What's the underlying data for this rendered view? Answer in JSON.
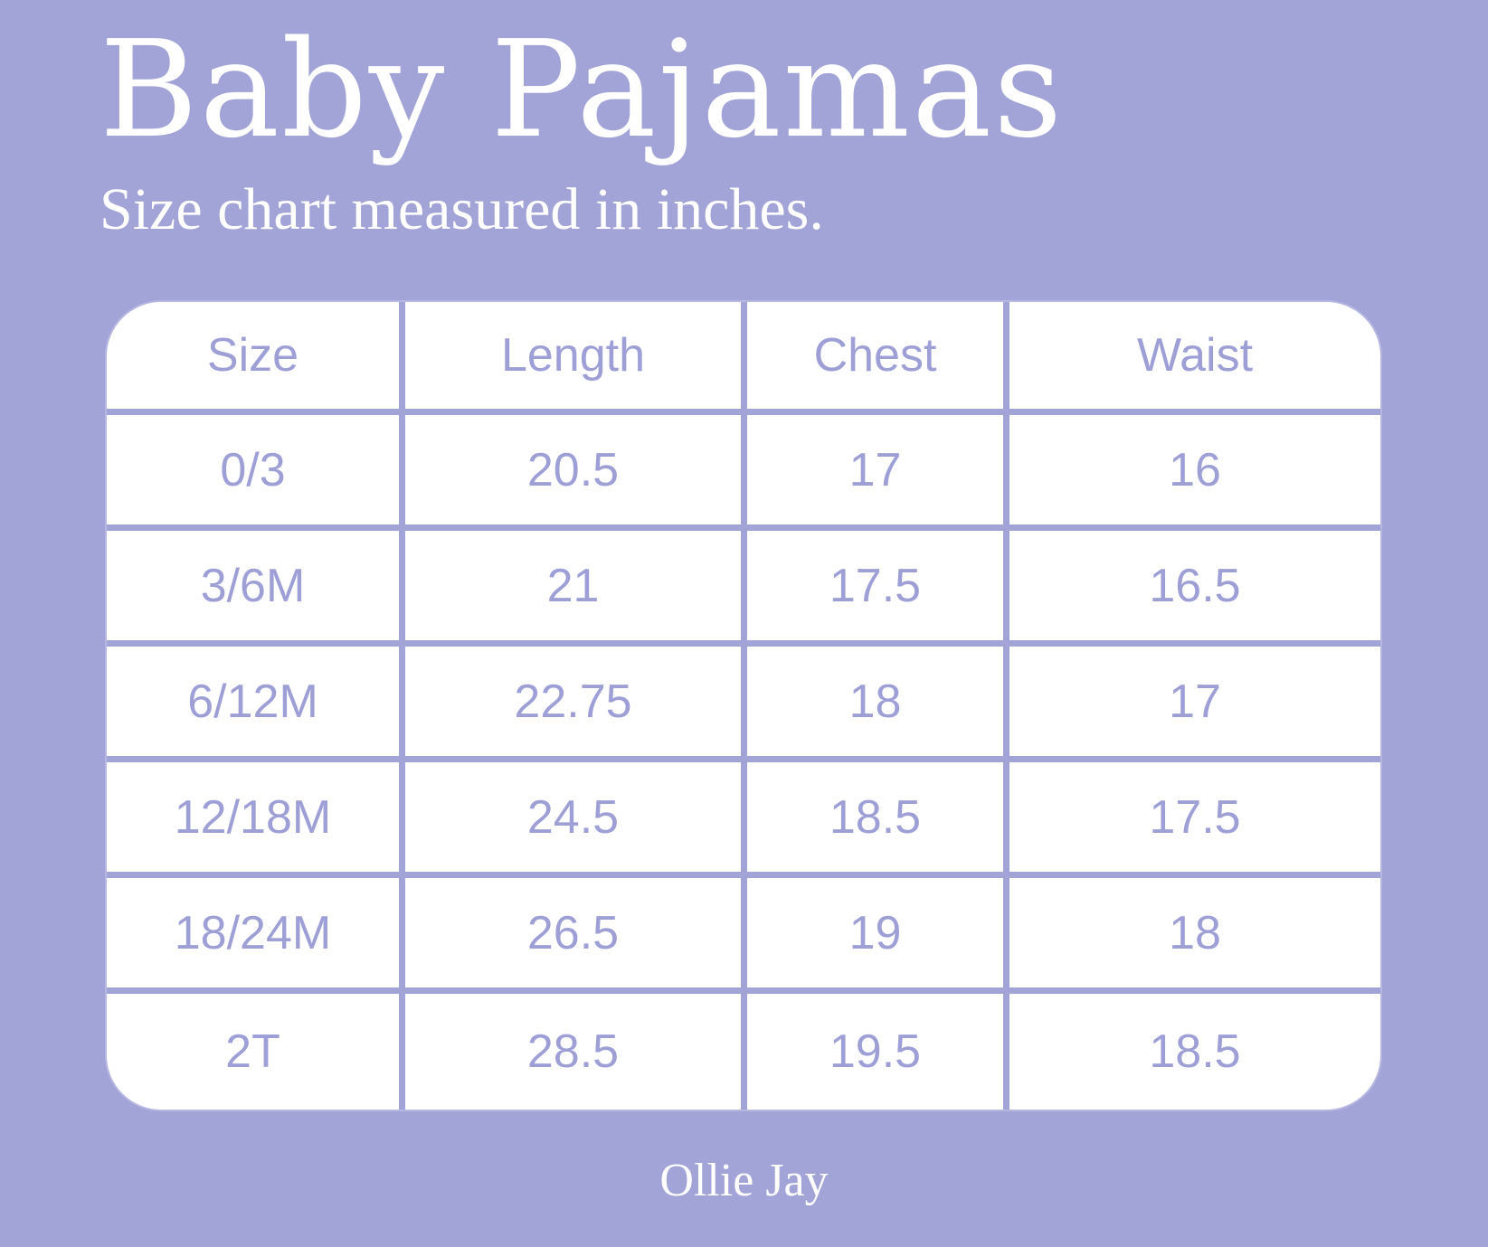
{
  "title": "Baby Pajamas",
  "subtitle": "Size chart measured in inches.",
  "table": {
    "headers": [
      "Size",
      "Length",
      "Chest",
      "Waist"
    ],
    "rows": [
      [
        "0/3",
        "20.5",
        "17",
        "16"
      ],
      [
        "3/6M",
        "21",
        "17.5",
        "16.5"
      ],
      [
        "6/12M",
        "22.75",
        "18",
        "17"
      ],
      [
        "12/18M",
        "24.5",
        "18.5",
        "17.5"
      ],
      [
        "18/24M",
        "26.5",
        "19",
        "18"
      ],
      [
        "2T",
        "28.5",
        "19.5",
        "18.5"
      ]
    ]
  },
  "footer": "Ollie Jay",
  "colors": {
    "background": "#a2a3d6",
    "text_accent": "#9d9fd6",
    "table_bg": "#ffffff"
  }
}
